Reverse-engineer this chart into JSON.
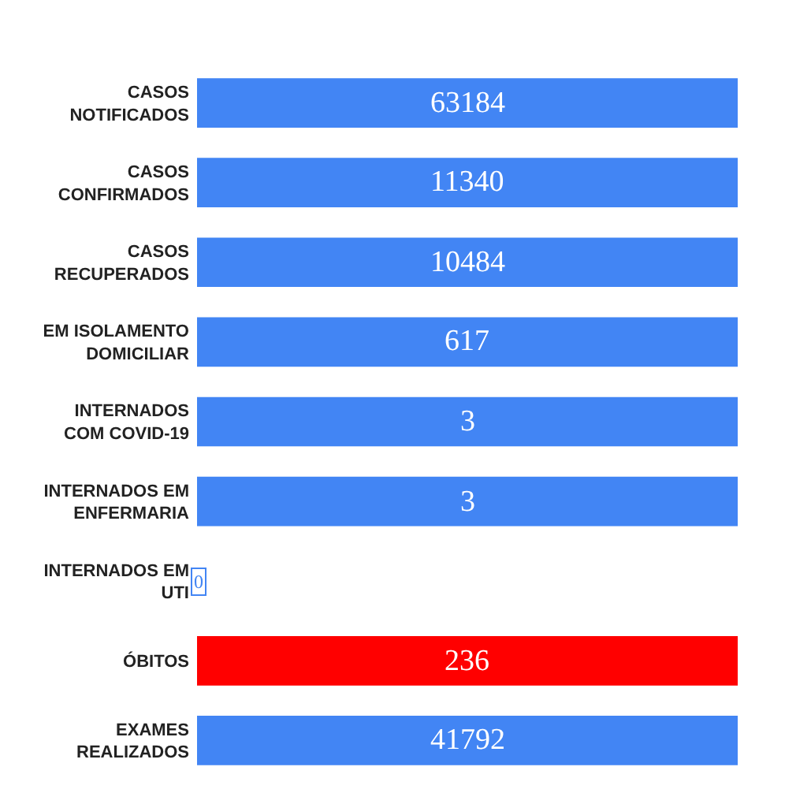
{
  "chart_data": {
    "type": "other",
    "categories": [
      "CASOS\nNOTIFICADOS",
      "CASOS\nCONFIRMADOS",
      "CASOS\nRECUPERADOS",
      "EM ISOLAMENTO\nDOMICILIAR",
      "INTERNADOS\nCOM COVID-19",
      "INTERNADOS EM\nENFERMARIA",
      "INTERNADOS EM\nUTI",
      "ÓBITOS",
      "EXAMES\nREALIZADOS"
    ],
    "values": [
      63184,
      11340,
      10484,
      617,
      3,
      3,
      0,
      236,
      41792
    ],
    "colors": [
      "#4285f4",
      "#4285f4",
      "#4285f4",
      "#4285f4",
      "#4285f4",
      "#4285f4",
      "#4285f4",
      "#ff0000",
      "#4285f4"
    ],
    "data_labels": true
  }
}
